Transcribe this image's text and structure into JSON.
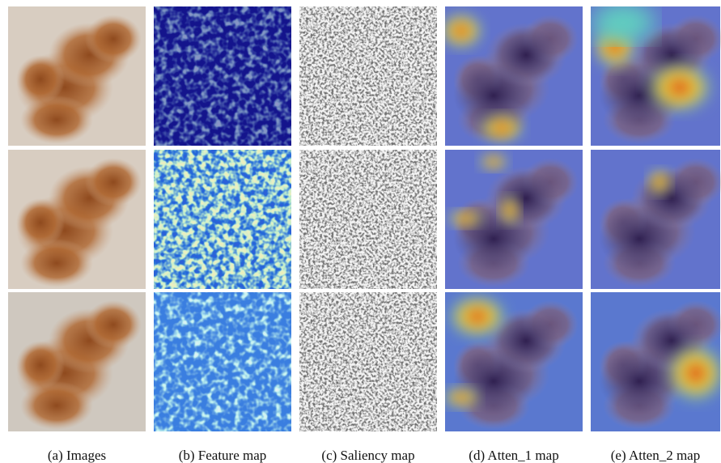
{
  "figure": {
    "captions": [
      "(a) Images",
      "(b) Feature map",
      "(c) Saliency map",
      "(d) Atten_1 map",
      "(e) Atten_2 map"
    ]
  }
}
